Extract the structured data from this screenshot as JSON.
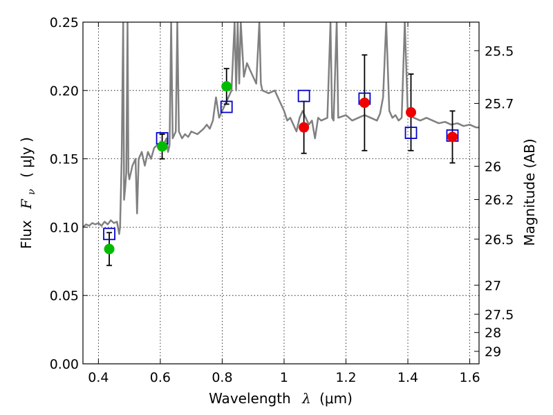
{
  "chart_data": {
    "type": "scatter",
    "xlabel": "Wavelength",
    "xlabel_symbol": "λ",
    "xlabel_unit": "(μm)",
    "ylabel": "Flux",
    "ylabel_symbol": "F",
    "ylabel_subscript": "ν",
    "ylabel_unit": "( μJy )",
    "y2label": "Magnitude (AB)",
    "xlim": [
      0.35,
      1.63
    ],
    "ylim": [
      0.0,
      0.25
    ],
    "grid": true,
    "x_ticks": [
      {
        "value": 0.4,
        "label": "0.4"
      },
      {
        "value": 0.6,
        "label": "0.6"
      },
      {
        "value": 0.8,
        "label": "0.8"
      },
      {
        "value": 1.0,
        "label": "1"
      },
      {
        "value": 1.2,
        "label": "1.2"
      },
      {
        "value": 1.4,
        "label": "1.4"
      },
      {
        "value": 1.6,
        "label": "1.6"
      }
    ],
    "y_ticks": [
      {
        "value": 0.0,
        "label": "0.00"
      },
      {
        "value": 0.05,
        "label": "0.05"
      },
      {
        "value": 0.1,
        "label": "0.10"
      },
      {
        "value": 0.15,
        "label": "0.15"
      },
      {
        "value": 0.2,
        "label": "0.20"
      },
      {
        "value": 0.25,
        "label": "0.25"
      }
    ],
    "mag_ticks": [
      {
        "value": 25.5,
        "label": "25.5"
      },
      {
        "value": 25.7,
        "label": "25.7"
      },
      {
        "value": 26.0,
        "label": "26"
      },
      {
        "value": 26.2,
        "label": "26.2"
      },
      {
        "value": 26.5,
        "label": "26.5"
      },
      {
        "value": 27.0,
        "label": "27"
      },
      {
        "value": 27.5,
        "label": "27.5"
      },
      {
        "value": 28.0,
        "label": "28"
      },
      {
        "value": 29.0,
        "label": "29"
      }
    ],
    "mag_flux_relation": "flux_uJy = 10^((23.9 - mag)/2.5)",
    "model_color": "#808080",
    "model_spectrum": [
      [
        0.35,
        0.1
      ],
      [
        0.36,
        0.102
      ],
      [
        0.37,
        0.101
      ],
      [
        0.38,
        0.103
      ],
      [
        0.39,
        0.102
      ],
      [
        0.4,
        0.103
      ],
      [
        0.41,
        0.101
      ],
      [
        0.42,
        0.104
      ],
      [
        0.43,
        0.102
      ],
      [
        0.44,
        0.105
      ],
      [
        0.45,
        0.103
      ],
      [
        0.46,
        0.104
      ],
      [
        0.467,
        0.095
      ],
      [
        0.47,
        0.1
      ],
      [
        0.475,
        0.15
      ],
      [
        0.48,
        0.25
      ],
      [
        0.483,
        0.12
      ],
      [
        0.487,
        0.13
      ],
      [
        0.49,
        0.14
      ],
      [
        0.494,
        0.25
      ],
      [
        0.497,
        0.14
      ],
      [
        0.5,
        0.135
      ],
      [
        0.51,
        0.145
      ],
      [
        0.52,
        0.15
      ],
      [
        0.525,
        0.11
      ],
      [
        0.53,
        0.15
      ],
      [
        0.54,
        0.155
      ],
      [
        0.55,
        0.145
      ],
      [
        0.56,
        0.155
      ],
      [
        0.57,
        0.15
      ],
      [
        0.58,
        0.158
      ],
      [
        0.59,
        0.16
      ],
      [
        0.6,
        0.162
      ],
      [
        0.61,
        0.16
      ],
      [
        0.62,
        0.165
      ],
      [
        0.625,
        0.155
      ],
      [
        0.63,
        0.16
      ],
      [
        0.635,
        0.25
      ],
      [
        0.64,
        0.165
      ],
      [
        0.65,
        0.17
      ],
      [
        0.655,
        0.25
      ],
      [
        0.66,
        0.17
      ],
      [
        0.67,
        0.165
      ],
      [
        0.68,
        0.168
      ],
      [
        0.69,
        0.166
      ],
      [
        0.7,
        0.17
      ],
      [
        0.72,
        0.168
      ],
      [
        0.74,
        0.172
      ],
      [
        0.75,
        0.175
      ],
      [
        0.76,
        0.172
      ],
      [
        0.77,
        0.178
      ],
      [
        0.78,
        0.195
      ],
      [
        0.79,
        0.18
      ],
      [
        0.8,
        0.185
      ],
      [
        0.81,
        0.19
      ],
      [
        0.82,
        0.195
      ],
      [
        0.83,
        0.2
      ],
      [
        0.84,
        0.25
      ],
      [
        0.845,
        0.2
      ],
      [
        0.85,
        0.25
      ],
      [
        0.855,
        0.205
      ],
      [
        0.86,
        0.25
      ],
      [
        0.87,
        0.21
      ],
      [
        0.88,
        0.22
      ],
      [
        0.89,
        0.215
      ],
      [
        0.9,
        0.21
      ],
      [
        0.91,
        0.205
      ],
      [
        0.92,
        0.25
      ],
      [
        0.925,
        0.205
      ],
      [
        0.93,
        0.2
      ],
      [
        0.95,
        0.198
      ],
      [
        0.97,
        0.2
      ],
      [
        0.99,
        0.19
      ],
      [
        1.0,
        0.185
      ],
      [
        1.01,
        0.178
      ],
      [
        1.02,
        0.18
      ],
      [
        1.03,
        0.175
      ],
      [
        1.04,
        0.17
      ],
      [
        1.05,
        0.18
      ],
      [
        1.06,
        0.185
      ],
      [
        1.08,
        0.175
      ],
      [
        1.09,
        0.178
      ],
      [
        1.1,
        0.165
      ],
      [
        1.11,
        0.18
      ],
      [
        1.12,
        0.178
      ],
      [
        1.14,
        0.18
      ],
      [
        1.15,
        0.25
      ],
      [
        1.155,
        0.18
      ],
      [
        1.16,
        0.178
      ],
      [
        1.17,
        0.25
      ],
      [
        1.175,
        0.18
      ],
      [
        1.2,
        0.182
      ],
      [
        1.22,
        0.178
      ],
      [
        1.24,
        0.18
      ],
      [
        1.26,
        0.182
      ],
      [
        1.28,
        0.18
      ],
      [
        1.3,
        0.178
      ],
      [
        1.31,
        0.183
      ],
      [
        1.32,
        0.195
      ],
      [
        1.33,
        0.25
      ],
      [
        1.34,
        0.185
      ],
      [
        1.35,
        0.18
      ],
      [
        1.36,
        0.182
      ],
      [
        1.37,
        0.178
      ],
      [
        1.38,
        0.18
      ],
      [
        1.39,
        0.25
      ],
      [
        1.4,
        0.182
      ],
      [
        1.42,
        0.18
      ],
      [
        1.44,
        0.178
      ],
      [
        1.46,
        0.18
      ],
      [
        1.48,
        0.178
      ],
      [
        1.5,
        0.176
      ],
      [
        1.52,
        0.177
      ],
      [
        1.54,
        0.175
      ],
      [
        1.56,
        0.176
      ],
      [
        1.58,
        0.174
      ],
      [
        1.6,
        0.175
      ],
      [
        1.62,
        0.173
      ],
      [
        1.63,
        0.173
      ]
    ],
    "model_points": [
      {
        "x": 0.435,
        "y": 0.095
      },
      {
        "x": 0.606,
        "y": 0.165
      },
      {
        "x": 0.814,
        "y": 0.188
      },
      {
        "x": 1.064,
        "y": 0.196
      },
      {
        "x": 1.26,
        "y": 0.194
      },
      {
        "x": 1.41,
        "y": 0.169
      },
      {
        "x": 1.544,
        "y": 0.167
      }
    ],
    "model_point_color": "#0000cc",
    "observed_series": [
      {
        "color": "#00bb00",
        "points": [
          {
            "x": 0.435,
            "y": 0.084,
            "err": 0.012
          },
          {
            "x": 0.606,
            "y": 0.159,
            "err": 0.009
          },
          {
            "x": 0.814,
            "y": 0.203,
            "err": 0.013
          }
        ]
      },
      {
        "color": "#ee0000",
        "points": [
          {
            "x": 1.064,
            "y": 0.173,
            "err": 0.019
          },
          {
            "x": 1.26,
            "y": 0.191,
            "err": 0.035
          },
          {
            "x": 1.41,
            "y": 0.184,
            "err": 0.028
          },
          {
            "x": 1.544,
            "y": 0.166,
            "err": 0.019
          }
        ]
      }
    ]
  }
}
